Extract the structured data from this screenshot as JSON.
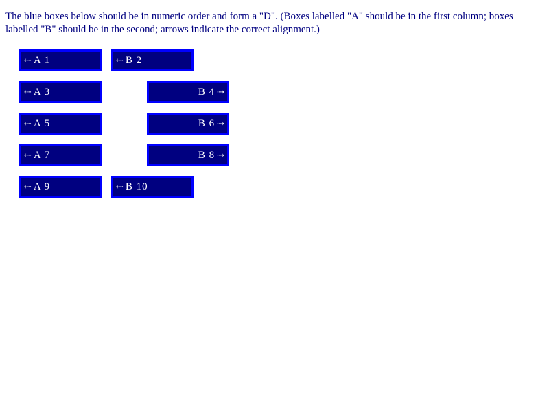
{
  "instructions": "The blue boxes below should be in numeric order and form a \"D\". (Boxes labelled \"A\" should be in the first column; boxes labelled \"B\" should be in the second; arrows indicate the correct alignment.)",
  "arrows": {
    "left": "⇠",
    "right": "⇢"
  },
  "boxes": {
    "a1": "A 1",
    "b2": "B 2",
    "a3": "A 3",
    "b4": "B 4",
    "a5": "A 5",
    "b6": "B 6",
    "a7": "A 7",
    "b8": "B 8",
    "a9": "A 9",
    "b10": "B 10"
  },
  "colors": {
    "box_fill": "#000080",
    "box_border": "#0000ff",
    "box_text": "#ffffff",
    "text": "#000080"
  }
}
